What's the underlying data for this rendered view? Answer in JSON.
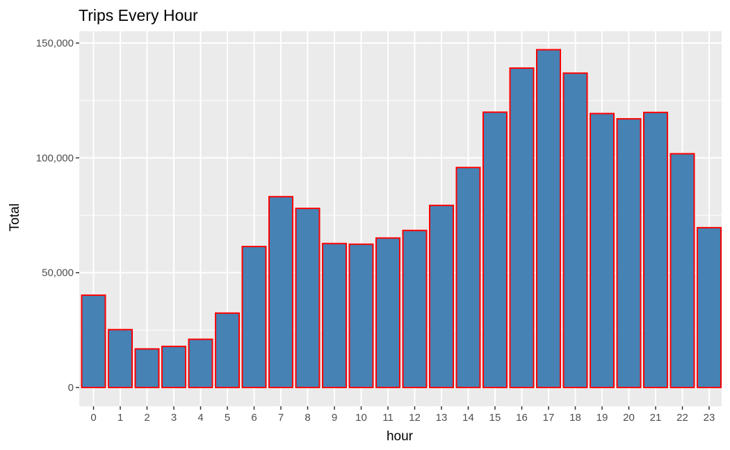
{
  "chart_data": {
    "type": "bar",
    "title": "Trips Every Hour",
    "xlabel": "hour",
    "ylabel": "Total",
    "categories": [
      "0",
      "1",
      "2",
      "3",
      "4",
      "5",
      "6",
      "7",
      "8",
      "9",
      "10",
      "11",
      "12",
      "13",
      "14",
      "15",
      "16",
      "17",
      "18",
      "19",
      "20",
      "21",
      "22",
      "23"
    ],
    "values": [
      40200,
      25200,
      16800,
      17900,
      21000,
      32400,
      61400,
      83100,
      78000,
      62700,
      62400,
      65100,
      68400,
      79300,
      95800,
      119900,
      139100,
      147100,
      136900,
      119300,
      117000,
      119800,
      101800,
      69600
    ],
    "ylim": [
      0,
      150000
    ],
    "y_ticks": [
      0,
      50000,
      100000,
      150000
    ],
    "y_tick_labels": [
      "0",
      "50,000",
      "100,000",
      "150,000"
    ],
    "grid": true,
    "colors": {
      "panel_background": "#ebebeb",
      "grid": "#ffffff",
      "bar_fill": "#4682b4",
      "bar_outline": "#ff0000",
      "tick_text": "#4d4d4d",
      "tick_mark": "#333333"
    }
  }
}
